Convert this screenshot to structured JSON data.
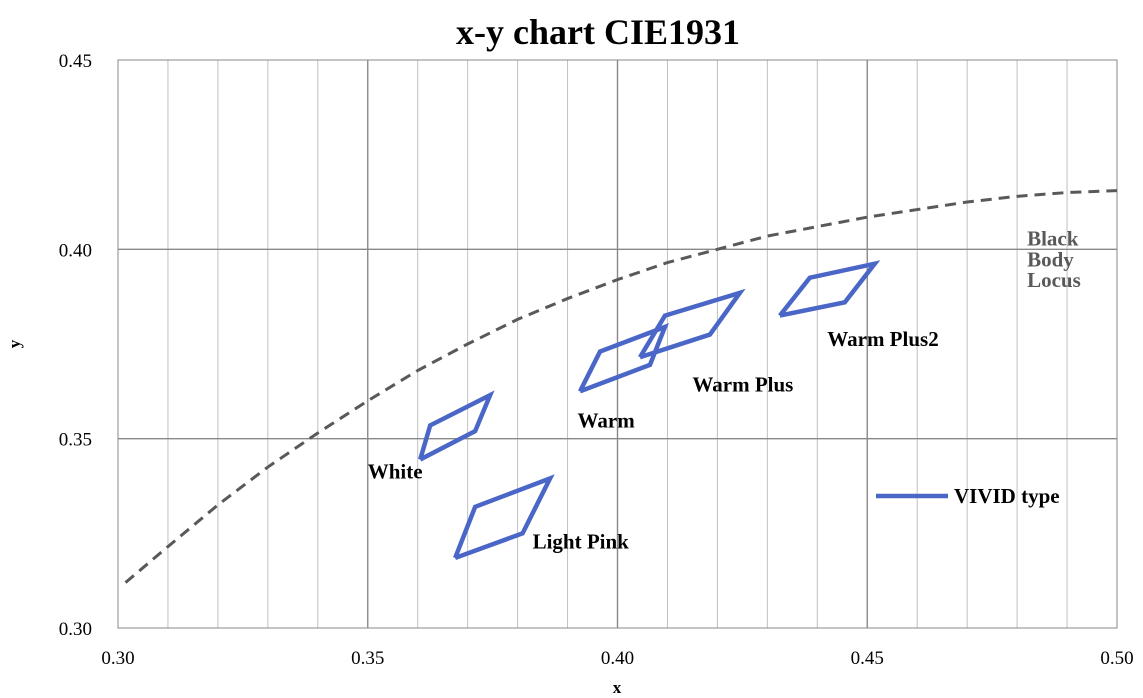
{
  "chart_data": {
    "type": "line",
    "title": "x-y chart  CIE1931",
    "xlabel": "x",
    "ylabel": "y",
    "xlim": [
      0.3,
      0.5
    ],
    "ylim": [
      0.3,
      0.45
    ],
    "x_ticks": [
      0.3,
      0.35,
      0.4,
      0.45,
      0.5
    ],
    "x_tick_labels": [
      "0.30",
      "0.35",
      "0.40",
      "0.45",
      "0.50"
    ],
    "y_ticks": [
      0.3,
      0.35,
      0.4,
      0.45
    ],
    "y_tick_labels": [
      "0.30",
      "0.35",
      "0.40",
      "0.45"
    ],
    "x_minor_step": 0.01,
    "grid": true,
    "legend": {
      "position": "right",
      "entries": [
        "VIVID type"
      ]
    },
    "colors": {
      "series": "#4a66c6",
      "locus": "#595959",
      "grid_major": "#888888",
      "grid_minor": "#c0c0c0"
    },
    "series": [
      {
        "name": "VIVID type",
        "regions": [
          {
            "label": "White",
            "points": [
              [
                0.3605,
                0.3445
              ],
              [
                0.3625,
                0.3535
              ],
              [
                0.3745,
                0.3615
              ],
              [
                0.3715,
                0.352
              ],
              [
                0.3605,
                0.3445
              ]
            ]
          },
          {
            "label": "Light Pink",
            "points": [
              [
                0.3675,
                0.3185
              ],
              [
                0.3715,
                0.332
              ],
              [
                0.3865,
                0.3395
              ],
              [
                0.381,
                0.325
              ],
              [
                0.3675,
                0.3185
              ]
            ]
          },
          {
            "label": "Warm",
            "points": [
              [
                0.3925,
                0.3625
              ],
              [
                0.3965,
                0.373
              ],
              [
                0.4095,
                0.3795
              ],
              [
                0.4065,
                0.3695
              ],
              [
                0.3925,
                0.3625
              ]
            ]
          },
          {
            "label": "Warm Plus",
            "points": [
              [
                0.4045,
                0.3715
              ],
              [
                0.4095,
                0.3825
              ],
              [
                0.4245,
                0.3885
              ],
              [
                0.4185,
                0.3775
              ],
              [
                0.4045,
                0.3715
              ]
            ]
          },
          {
            "label": "Warm Plus2",
            "points": [
              [
                0.4325,
                0.3825
              ],
              [
                0.4385,
                0.3925
              ],
              [
                0.4515,
                0.3962
              ],
              [
                0.4455,
                0.386
              ],
              [
                0.4325,
                0.3825
              ]
            ]
          }
        ]
      },
      {
        "name": "Black Body Locus",
        "style": "dashed",
        "points": [
          [
            0.3015,
            0.312
          ],
          [
            0.31,
            0.3215
          ],
          [
            0.32,
            0.3325
          ],
          [
            0.33,
            0.3425
          ],
          [
            0.34,
            0.3515
          ],
          [
            0.35,
            0.36
          ],
          [
            0.36,
            0.368
          ],
          [
            0.37,
            0.375
          ],
          [
            0.38,
            0.3815
          ],
          [
            0.39,
            0.387
          ],
          [
            0.4,
            0.392
          ],
          [
            0.41,
            0.3965
          ],
          [
            0.42,
            0.4
          ],
          [
            0.43,
            0.4035
          ],
          [
            0.44,
            0.406
          ],
          [
            0.45,
            0.4085
          ],
          [
            0.46,
            0.4105
          ],
          [
            0.47,
            0.4125
          ],
          [
            0.48,
            0.414
          ],
          [
            0.49,
            0.415
          ],
          [
            0.5,
            0.4155
          ]
        ]
      }
    ],
    "annotations": [
      {
        "text": "White",
        "x": 0.35,
        "y": 0.3395
      },
      {
        "text": "Light Pink",
        "x": 0.383,
        "y": 0.321
      },
      {
        "text": "Warm",
        "x": 0.392,
        "y": 0.353
      },
      {
        "text": "Warm Plus",
        "x": 0.415,
        "y": 0.3625
      },
      {
        "text": "Warm Plus2",
        "x": 0.442,
        "y": 0.3745
      },
      {
        "text": "Black",
        "x": 0.482,
        "y": 0.401
      },
      {
        "text": "Body",
        "x": 0.482,
        "y": 0.3955
      },
      {
        "text": "Locus",
        "x": 0.482,
        "y": 0.39
      }
    ]
  }
}
